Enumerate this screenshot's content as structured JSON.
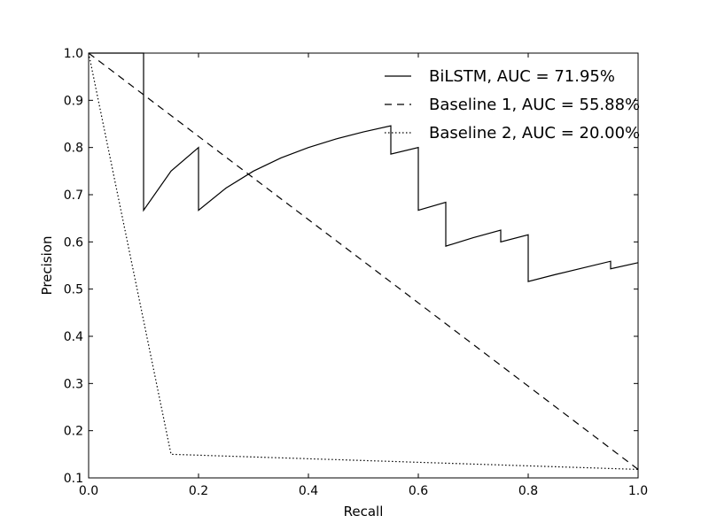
{
  "chart_data": {
    "type": "line",
    "title": "",
    "xlabel": "Recall",
    "ylabel": "Precision",
    "xlim": [
      0.0,
      1.0
    ],
    "ylim": [
      0.1,
      1.0
    ],
    "xticks": [
      "0.0",
      "0.2",
      "0.4",
      "0.6",
      "0.8",
      "1.0"
    ],
    "yticks": [
      "0.1",
      "0.2",
      "0.3",
      "0.4",
      "0.5",
      "0.6",
      "0.7",
      "0.8",
      "0.9",
      "1.0"
    ],
    "grid": false,
    "legend_position": "top-right",
    "series": [
      {
        "name": "BiLSTM, AUC = 71.95%",
        "style": "solid",
        "color": "#000000",
        "x": [
          0.0,
          0.1,
          0.1,
          0.15,
          0.2,
          0.2,
          0.25,
          0.3,
          0.35,
          0.4,
          0.45,
          0.5,
          0.55,
          0.55,
          0.6,
          0.6,
          0.65,
          0.65,
          0.7,
          0.75,
          0.75,
          0.8,
          0.8,
          0.85,
          0.9,
          0.95,
          0.95,
          1.0
        ],
        "y": [
          1.0,
          1.0,
          0.667,
          0.75,
          0.8,
          0.667,
          0.714,
          0.75,
          0.778,
          0.8,
          0.818,
          0.833,
          0.846,
          0.786,
          0.8,
          0.667,
          0.684,
          0.591,
          0.609,
          0.625,
          0.6,
          0.615,
          0.516,
          0.531,
          0.545,
          0.559,
          0.543,
          0.556
        ]
      },
      {
        "name": "Baseline 1, AUC = 55.88%",
        "style": "dashed",
        "color": "#000000",
        "x": [
          0.0,
          1.0
        ],
        "y": [
          1.0,
          0.118
        ]
      },
      {
        "name": "Baseline 2, AUC = 20.00%",
        "style": "dotted",
        "color": "#000000",
        "x": [
          0.0,
          0.15,
          1.0
        ],
        "y": [
          1.0,
          0.15,
          0.118
        ]
      }
    ]
  }
}
